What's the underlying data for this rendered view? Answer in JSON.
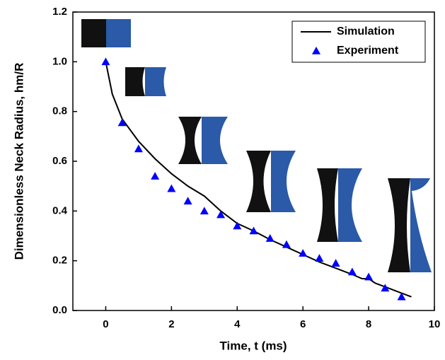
{
  "chart_data": {
    "type": "line",
    "xlabel": "Time, t (ms)",
    "ylabel": "Dimensionless Neck Radius, hm/R",
    "xlim": [
      -1,
      10
    ],
    "ylim": [
      0,
      1.2
    ],
    "xticks": [
      0,
      2,
      4,
      6,
      8,
      10
    ],
    "yticks": [
      {
        "value": 0,
        "label": "0.0"
      },
      0.2,
      0.4,
      0.6,
      0.8,
      {
        "value": 1,
        "label": "1.0"
      },
      1.2
    ],
    "legend": "upper right",
    "series": [
      {
        "name": "Simulation",
        "type": "line",
        "color": "#000000",
        "x": [
          0,
          0.2,
          0.5,
          1,
          1.5,
          2,
          2.5,
          3,
          3.5,
          4,
          4.5,
          5,
          5.5,
          6,
          6.5,
          7,
          7.5,
          7.8,
          8.0,
          8.2,
          8.5,
          9,
          9.3
        ],
        "values": [
          1.0,
          0.87,
          0.77,
          0.68,
          0.61,
          0.55,
          0.5,
          0.46,
          0.4,
          0.35,
          0.32,
          0.285,
          0.255,
          0.225,
          0.195,
          0.17,
          0.145,
          0.128,
          0.128,
          0.11,
          0.095,
          0.07,
          0.055
        ]
      },
      {
        "name": "Experiment",
        "type": "scatter",
        "color": "#0000ff",
        "x": [
          0,
          0.5,
          1,
          1.5,
          2,
          2.5,
          3,
          3.5,
          4,
          4.5,
          5,
          5.5,
          6,
          6.5,
          7,
          7.5,
          8,
          8.5,
          9
        ],
        "values": [
          1.0,
          0.755,
          0.65,
          0.54,
          0.49,
          0.44,
          0.4,
          0.385,
          0.34,
          0.32,
          0.29,
          0.265,
          0.23,
          0.21,
          0.19,
          0.155,
          0.135,
          0.09,
          0.055
        ]
      }
    ]
  }
}
